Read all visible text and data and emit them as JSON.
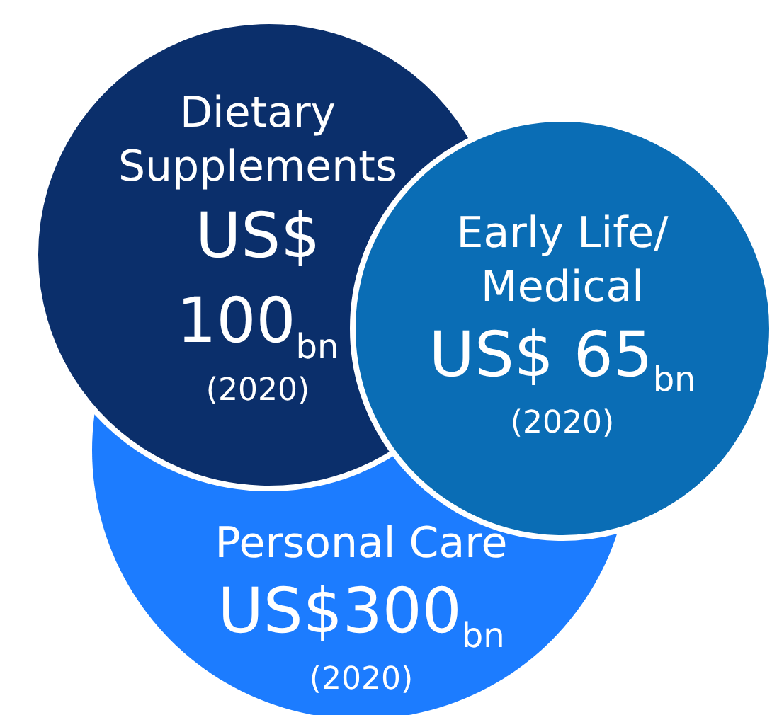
{
  "chart_data": {
    "type": "other",
    "categories": [
      "Dietary\nSupplements",
      "Early Life/\nMedical",
      "Personal Care"
    ],
    "values": [
      100,
      65,
      300
    ],
    "value_labels": [
      "US$\n100$_{bn}$",
      "US$ 65$_{bn}$",
      "US$300$_{bn}$"
    ],
    "annotations": [
      "(2020)",
      "(2020)",
      "(2020)"
    ],
    "colors": [
      "#0b2f6b",
      "#0a6db5",
      "#1c7cff"
    ]
  }
}
